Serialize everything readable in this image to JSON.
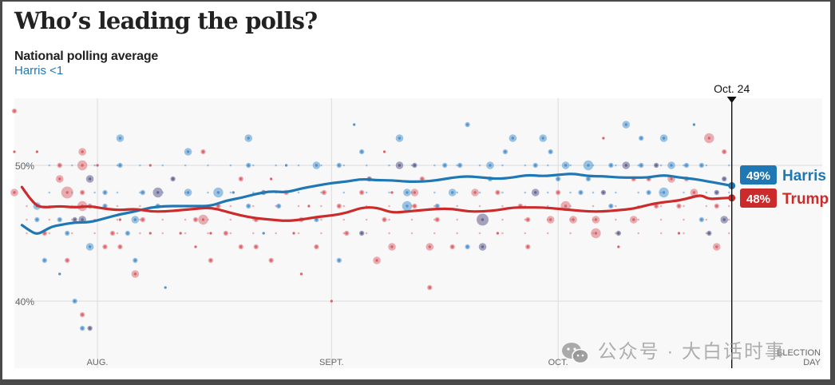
{
  "header": {
    "title": "Who’s leading the polls?",
    "subtitle": "National polling average",
    "leader_text": "Harris <1"
  },
  "watermark": {
    "text": "公众号 · 大白话时事",
    "icon": "wechat-icon"
  },
  "chart_data": {
    "type": "line",
    "title": "National polling average",
    "xlabel": "",
    "ylabel": "",
    "x_unit": "days since July 21",
    "x_range": [
      0,
      107
    ],
    "ylim": [
      37.3,
      57.1
    ],
    "y_ticks": [
      {
        "value": 50,
        "label": "50%"
      },
      {
        "value": 40,
        "label": "40%"
      }
    ],
    "x_ticks": [
      {
        "day": 11,
        "label": "AUG."
      },
      {
        "day": 42,
        "label": "SEPT."
      },
      {
        "day": 72,
        "label": "OCT."
      },
      {
        "day": 107,
        "label": "ELECTION",
        "label2": "DAY"
      }
    ],
    "grid": true,
    "current_marker": {
      "day": 95,
      "label": "Oct. 24"
    },
    "colors": {
      "Harris": "#1f77b4",
      "Trump": "#cc2b2b",
      "panel": "#f8f8f8"
    },
    "series": [
      {
        "name": "Harris",
        "final_label": "49%",
        "points": [
          [
            1,
            45.6
          ],
          [
            2,
            45.2
          ],
          [
            3,
            44.9
          ],
          [
            4,
            45.2
          ],
          [
            5,
            45.5
          ],
          [
            6,
            45.6
          ],
          [
            8,
            45.8
          ],
          [
            10,
            45.8
          ],
          [
            12,
            46.1
          ],
          [
            14,
            46.4
          ],
          [
            16,
            46.6
          ],
          [
            18,
            46.9
          ],
          [
            20,
            47.0
          ],
          [
            22,
            47.0
          ],
          [
            24,
            47.0
          ],
          [
            26,
            47.0
          ],
          [
            28,
            47.4
          ],
          [
            30,
            47.6
          ],
          [
            32,
            47.9
          ],
          [
            34,
            48.1
          ],
          [
            36,
            48.0
          ],
          [
            38,
            48.3
          ],
          [
            40,
            48.5
          ],
          [
            42,
            48.7
          ],
          [
            44,
            48.8
          ],
          [
            46,
            49.0
          ],
          [
            48,
            48.9
          ],
          [
            50,
            48.9
          ],
          [
            52,
            48.8
          ],
          [
            54,
            48.8
          ],
          [
            56,
            48.9
          ],
          [
            58,
            49.1
          ],
          [
            60,
            49.2
          ],
          [
            62,
            49.1
          ],
          [
            64,
            49.0
          ],
          [
            66,
            49.1
          ],
          [
            68,
            49.3
          ],
          [
            70,
            49.2
          ],
          [
            72,
            49.3
          ],
          [
            74,
            49.4
          ],
          [
            76,
            49.2
          ],
          [
            78,
            49.2
          ],
          [
            80,
            49.1
          ],
          [
            82,
            49.1
          ],
          [
            84,
            49.1
          ],
          [
            86,
            49.3
          ],
          [
            88,
            49.1
          ],
          [
            90,
            49.0
          ],
          [
            92,
            48.8
          ],
          [
            94,
            48.6
          ],
          [
            95,
            48.5
          ]
        ]
      },
      {
        "name": "Trump",
        "final_label": "48%",
        "points": [
          [
            1,
            48.4
          ],
          [
            2,
            47.6
          ],
          [
            3,
            47.0
          ],
          [
            4,
            46.9
          ],
          [
            6,
            47.0
          ],
          [
            8,
            46.9
          ],
          [
            10,
            47.0
          ],
          [
            12,
            46.8
          ],
          [
            14,
            46.7
          ],
          [
            16,
            46.8
          ],
          [
            18,
            46.6
          ],
          [
            20,
            46.6
          ],
          [
            22,
            46.7
          ],
          [
            24,
            46.8
          ],
          [
            26,
            46.9
          ],
          [
            28,
            46.6
          ],
          [
            30,
            46.3
          ],
          [
            32,
            46.1
          ],
          [
            34,
            46.0
          ],
          [
            36,
            45.9
          ],
          [
            38,
            46.0
          ],
          [
            40,
            46.2
          ],
          [
            42,
            46.3
          ],
          [
            44,
            46.5
          ],
          [
            46,
            46.9
          ],
          [
            48,
            46.9
          ],
          [
            50,
            46.5
          ],
          [
            52,
            46.6
          ],
          [
            54,
            46.7
          ],
          [
            56,
            46.8
          ],
          [
            58,
            46.8
          ],
          [
            60,
            46.6
          ],
          [
            62,
            46.6
          ],
          [
            64,
            46.7
          ],
          [
            66,
            46.9
          ],
          [
            68,
            46.9
          ],
          [
            70,
            46.9
          ],
          [
            72,
            46.8
          ],
          [
            74,
            46.7
          ],
          [
            76,
            46.6
          ],
          [
            78,
            46.6
          ],
          [
            80,
            46.7
          ],
          [
            82,
            46.8
          ],
          [
            84,
            47.1
          ],
          [
            86,
            47.3
          ],
          [
            88,
            47.4
          ],
          [
            90,
            47.7
          ],
          [
            91,
            47.8
          ],
          [
            92,
            47.5
          ],
          [
            94,
            47.6
          ],
          [
            95,
            47.6
          ]
        ]
      }
    ],
    "polls": [
      [
        0,
        54,
        "T",
        2
      ],
      [
        0,
        48,
        "T",
        3
      ],
      [
        0,
        51,
        "T",
        1
      ],
      [
        3,
        47,
        "H",
        3
      ],
      [
        3,
        51,
        "T",
        1
      ],
      [
        3,
        46,
        "H",
        2
      ],
      [
        4,
        45,
        "T",
        2
      ],
      [
        4,
        43,
        "H",
        2
      ],
      [
        6,
        49,
        "T",
        3
      ],
      [
        6,
        50,
        "T",
        2
      ],
      [
        6,
        46,
        "H",
        2
      ],
      [
        6,
        42,
        "H",
        1
      ],
      [
        7,
        48,
        "T",
        5
      ],
      [
        7,
        43,
        "T",
        2
      ],
      [
        7,
        45,
        "H",
        2
      ],
      [
        8,
        46,
        "X",
        2
      ],
      [
        8,
        40,
        "H",
        2
      ],
      [
        9,
        50,
        "T",
        4
      ],
      [
        9,
        48,
        "T",
        2
      ],
      [
        9,
        47,
        "T",
        4
      ],
      [
        9,
        46,
        "X",
        3
      ],
      [
        9,
        51,
        "T",
        3
      ],
      [
        9,
        39,
        "T",
        2
      ],
      [
        9,
        38,
        "H",
        2
      ],
      [
        10,
        38,
        "X",
        2
      ],
      [
        10,
        47,
        "T",
        2
      ],
      [
        10,
        44,
        "H",
        3
      ],
      [
        10,
        49,
        "X",
        3
      ],
      [
        11,
        50,
        "T",
        1
      ],
      [
        12,
        48,
        "H",
        2
      ],
      [
        12,
        47,
        "H",
        2
      ],
      [
        13,
        45,
        "T",
        2
      ],
      [
        12,
        44,
        "T",
        2
      ],
      [
        14,
        52,
        "H",
        3
      ],
      [
        14,
        50,
        "H",
        2
      ],
      [
        14,
        46,
        "T",
        1
      ],
      [
        14,
        44,
        "T",
        2
      ],
      [
        15,
        45,
        "H",
        2
      ],
      [
        16,
        46,
        "H",
        3
      ],
      [
        16,
        43,
        "H",
        2
      ],
      [
        16,
        42,
        "T",
        3
      ],
      [
        17,
        46,
        "T",
        2
      ],
      [
        17,
        48,
        "H",
        2
      ],
      [
        18,
        50,
        "T",
        1
      ],
      [
        18,
        45,
        "T",
        1
      ],
      [
        19,
        48,
        "X",
        4
      ],
      [
        19,
        47,
        "H",
        2
      ],
      [
        20,
        41,
        "H",
        1
      ],
      [
        21,
        49,
        "X",
        2
      ],
      [
        22,
        45,
        "T",
        1
      ],
      [
        23,
        51,
        "H",
        3
      ],
      [
        23,
        48,
        "H",
        3
      ],
      [
        24,
        46,
        "T",
        2
      ],
      [
        24,
        44,
        "T",
        1
      ],
      [
        25,
        46,
        "T",
        4
      ],
      [
        25,
        51,
        "T",
        2
      ],
      [
        26,
        45,
        "T",
        1
      ],
      [
        26,
        43,
        "T",
        2
      ],
      [
        27,
        48,
        "H",
        4
      ],
      [
        27,
        47,
        "T",
        2
      ],
      [
        28,
        45,
        "T",
        2
      ],
      [
        29,
        48,
        "H",
        1
      ],
      [
        30,
        44,
        "T",
        2
      ],
      [
        30,
        49,
        "T",
        2
      ],
      [
        31,
        52,
        "H",
        3
      ],
      [
        31,
        50,
        "H",
        2
      ],
      [
        31,
        47,
        "H",
        2
      ],
      [
        32,
        46,
        "T",
        2
      ],
      [
        32,
        44,
        "T",
        2
      ],
      [
        33,
        48,
        "X",
        2
      ],
      [
        33,
        45,
        "H",
        1
      ],
      [
        34,
        49,
        "T",
        1
      ],
      [
        34,
        43,
        "T",
        2
      ],
      [
        35,
        47,
        "H",
        2
      ],
      [
        36,
        50,
        "H",
        1
      ],
      [
        36,
        48,
        "T",
        2
      ],
      [
        37,
        45,
        "T",
        1
      ],
      [
        38,
        46,
        "T",
        2
      ],
      [
        38,
        42,
        "T",
        1
      ],
      [
        39,
        47,
        "T",
        1
      ],
      [
        40,
        50,
        "H",
        3
      ],
      [
        40,
        46,
        "H",
        2
      ],
      [
        40,
        44,
        "T",
        2
      ],
      [
        41,
        48,
        "T",
        2
      ],
      [
        42,
        40,
        "T",
        1
      ],
      [
        43,
        50,
        "H",
        2
      ],
      [
        43,
        47,
        "T",
        2
      ],
      [
        43,
        43,
        "H",
        2
      ],
      [
        44,
        45,
        "T",
        2
      ],
      [
        45,
        53,
        "H",
        1
      ],
      [
        46,
        51,
        "H",
        2
      ],
      [
        46,
        48,
        "T",
        2
      ],
      [
        46,
        45,
        "X",
        2
      ],
      [
        47,
        49,
        "X",
        2
      ],
      [
        48,
        43,
        "T",
        3
      ],
      [
        49,
        51,
        "T",
        1
      ],
      [
        49,
        46,
        "T",
        2
      ],
      [
        50,
        48,
        "T",
        1
      ],
      [
        50,
        44,
        "T",
        3
      ],
      [
        51,
        52,
        "H",
        3
      ],
      [
        51,
        50,
        "X",
        3
      ],
      [
        52,
        48,
        "H",
        3
      ],
      [
        52,
        47,
        "H",
        4
      ],
      [
        53,
        50,
        "X",
        2
      ],
      [
        53,
        48,
        "T",
        3
      ],
      [
        53,
        47,
        "T",
        2
      ],
      [
        54,
        49,
        "T",
        2
      ],
      [
        55,
        44,
        "T",
        3
      ],
      [
        55,
        41,
        "T",
        2
      ],
      [
        56,
        47,
        "H",
        2
      ],
      [
        56,
        46,
        "T",
        2
      ],
      [
        57,
        50,
        "H",
        2
      ],
      [
        58,
        48,
        "H",
        3
      ],
      [
        58,
        44,
        "T",
        2
      ],
      [
        59,
        50,
        "H",
        2
      ],
      [
        60,
        53,
        "H",
        2
      ],
      [
        60,
        44,
        "H",
        2
      ],
      [
        61,
        48,
        "T",
        3
      ],
      [
        62,
        46,
        "X",
        5
      ],
      [
        62,
        44,
        "X",
        3
      ],
      [
        63,
        50,
        "H",
        3
      ],
      [
        63,
        49,
        "H",
        2
      ],
      [
        64,
        48,
        "T",
        2
      ],
      [
        64,
        45,
        "T",
        1
      ],
      [
        65,
        51,
        "H",
        2
      ],
      [
        66,
        52,
        "H",
        3
      ],
      [
        67,
        47,
        "T",
        2
      ],
      [
        68,
        44,
        "T",
        2
      ],
      [
        68,
        46,
        "T",
        2
      ],
      [
        69,
        48,
        "X",
        3
      ],
      [
        69,
        50,
        "H",
        2
      ],
      [
        70,
        52,
        "H",
        3
      ],
      [
        71,
        51,
        "H",
        2
      ],
      [
        71,
        46,
        "T",
        3
      ],
      [
        72,
        49,
        "H",
        2
      ],
      [
        72,
        48,
        "T",
        2
      ],
      [
        73,
        50,
        "H",
        3
      ],
      [
        73,
        47,
        "T",
        4
      ],
      [
        74,
        46,
        "T",
        3
      ],
      [
        75,
        48,
        "H",
        2
      ],
      [
        76,
        50,
        "H",
        4
      ],
      [
        76,
        49,
        "H",
        2
      ],
      [
        77,
        46,
        "T",
        3
      ],
      [
        77,
        45,
        "T",
        4
      ],
      [
        78,
        52,
        "T",
        1
      ],
      [
        78,
        48,
        "X",
        2
      ],
      [
        79,
        50,
        "H",
        2
      ],
      [
        79,
        47,
        "H",
        2
      ],
      [
        80,
        45,
        "X",
        2
      ],
      [
        80,
        44,
        "T",
        1
      ],
      [
        81,
        50,
        "X",
        3
      ],
      [
        81,
        53,
        "H",
        3
      ],
      [
        82,
        49,
        "T",
        2
      ],
      [
        82,
        46,
        "T",
        3
      ],
      [
        83,
        52,
        "H",
        2
      ],
      [
        83,
        50,
        "H",
        2
      ],
      [
        84,
        48,
        "H",
        2
      ],
      [
        84,
        49,
        "T",
        2
      ],
      [
        85,
        50,
        "X",
        2
      ],
      [
        85,
        47,
        "T",
        2
      ],
      [
        86,
        52,
        "H",
        3
      ],
      [
        86,
        48,
        "H",
        4
      ],
      [
        87,
        50,
        "H",
        3
      ],
      [
        87,
        49,
        "T",
        3
      ],
      [
        88,
        47,
        "T",
        2
      ],
      [
        88,
        45,
        "T",
        1
      ],
      [
        89,
        50,
        "H",
        2
      ],
      [
        89,
        49,
        "T",
        2
      ],
      [
        90,
        53,
        "H",
        1
      ],
      [
        90,
        48,
        "T",
        3
      ],
      [
        91,
        50,
        "H",
        2
      ],
      [
        91,
        46,
        "H",
        2
      ],
      [
        92,
        52,
        "T",
        4
      ],
      [
        92,
        45,
        "X",
        2
      ],
      [
        93,
        48,
        "X",
        2
      ],
      [
        93,
        47,
        "T",
        2
      ],
      [
        93,
        44,
        "T",
        3
      ],
      [
        94,
        51,
        "T",
        2
      ],
      [
        94,
        49,
        "X",
        2
      ],
      [
        94,
        46,
        "X",
        3
      ]
    ]
  }
}
